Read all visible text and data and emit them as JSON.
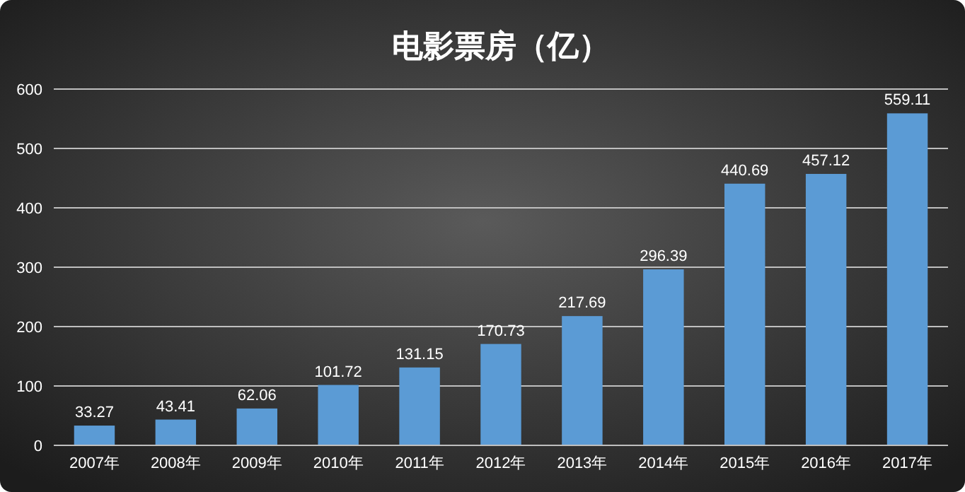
{
  "chart_data": {
    "type": "bar",
    "title": "电影票房（亿）",
    "categories": [
      "2007年",
      "2008年",
      "2009年",
      "2010年",
      "2011年",
      "2012年",
      "2013年",
      "2014年",
      "2015年",
      "2016年",
      "2017年"
    ],
    "values": [
      33.27,
      43.41,
      62.06,
      101.72,
      131.15,
      170.73,
      217.69,
      296.39,
      440.69,
      457.12,
      559.11
    ],
    "color": "#5b9bd5",
    "ylim": [
      0,
      600
    ],
    "yticks": [
      0,
      100,
      200,
      300,
      400,
      500,
      600
    ],
    "grid": "y",
    "data_labels": true
  }
}
